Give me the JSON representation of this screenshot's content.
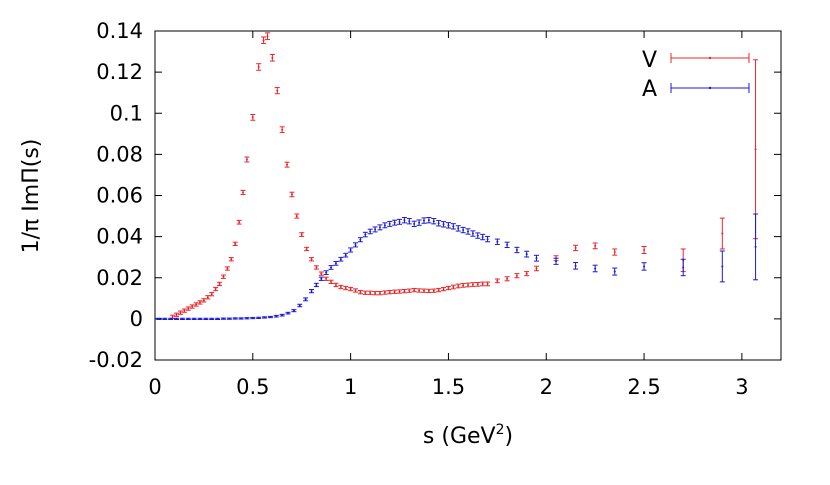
{
  "chart_data": {
    "type": "scatter",
    "title": "",
    "xlabel": "s (GeV",
    "xlabel_sup": "2",
    "xlabel_close": ")",
    "ylabel": "1/π  ImΠ(s)",
    "xlim": [
      0,
      3.2
    ],
    "ylim": [
      -0.02,
      0.14
    ],
    "xticks": [
      0,
      0.5,
      1,
      1.5,
      2,
      2.5,
      3
    ],
    "xtick_labels": [
      "0",
      "0.5",
      "1",
      "1.5",
      "2",
      "2.5",
      "3"
    ],
    "yticks": [
      -0.02,
      0,
      0.02,
      0.04,
      0.06,
      0.08,
      0.1,
      0.12,
      0.14
    ],
    "ytick_labels": [
      "-0.02",
      "0",
      "0.02",
      "0.04",
      "0.06",
      "0.08",
      "0.1",
      "0.12",
      "0.14"
    ],
    "grid": false,
    "legend_position": "top-right",
    "series": [
      {
        "name": "V",
        "color": "#e8262a",
        "points": [
          [
            0.09,
            0.001,
            0.0008
          ],
          [
            0.11,
            0.002,
            0.0008
          ],
          [
            0.13,
            0.003,
            0.0008
          ],
          [
            0.15,
            0.004,
            0.0008
          ],
          [
            0.17,
            0.005,
            0.0008
          ],
          [
            0.19,
            0.006,
            0.0008
          ],
          [
            0.21,
            0.007,
            0.0008
          ],
          [
            0.23,
            0.008,
            0.0008
          ],
          [
            0.25,
            0.009,
            0.0008
          ],
          [
            0.27,
            0.0105,
            0.0008
          ],
          [
            0.29,
            0.012,
            0.0008
          ],
          [
            0.31,
            0.0145,
            0.0008
          ],
          [
            0.33,
            0.017,
            0.0008
          ],
          [
            0.35,
            0.0205,
            0.0008
          ],
          [
            0.37,
            0.0245,
            0.0008
          ],
          [
            0.39,
            0.029,
            0.0008
          ],
          [
            0.41,
            0.0365,
            0.0008
          ],
          [
            0.43,
            0.047,
            0.0009
          ],
          [
            0.45,
            0.0615,
            0.001
          ],
          [
            0.47,
            0.0775,
            0.0012
          ],
          [
            0.5,
            0.098,
            0.0014
          ],
          [
            0.53,
            0.1225,
            0.0016
          ],
          [
            0.555,
            0.1355,
            0.0016
          ],
          [
            0.575,
            0.1375,
            0.0016
          ],
          [
            0.6,
            0.127,
            0.0016
          ],
          [
            0.625,
            0.111,
            0.0015
          ],
          [
            0.65,
            0.092,
            0.0014
          ],
          [
            0.675,
            0.075,
            0.0012
          ],
          [
            0.7,
            0.0605,
            0.0011
          ],
          [
            0.725,
            0.05,
            0.001
          ],
          [
            0.75,
            0.041,
            0.0009
          ],
          [
            0.775,
            0.034,
            0.0008
          ],
          [
            0.8,
            0.029,
            0.0008
          ],
          [
            0.825,
            0.025,
            0.0008
          ],
          [
            0.85,
            0.022,
            0.0008
          ],
          [
            0.875,
            0.0195,
            0.0008
          ],
          [
            0.9,
            0.018,
            0.0008
          ],
          [
            0.925,
            0.0165,
            0.0008
          ],
          [
            0.95,
            0.0155,
            0.0008
          ],
          [
            0.975,
            0.015,
            0.0008
          ],
          [
            1.0,
            0.0145,
            0.0008
          ],
          [
            1.025,
            0.0138,
            0.0008
          ],
          [
            1.05,
            0.013,
            0.0008
          ],
          [
            1.075,
            0.0127,
            0.0008
          ],
          [
            1.1,
            0.0127,
            0.0008
          ],
          [
            1.125,
            0.0125,
            0.0008
          ],
          [
            1.15,
            0.0125,
            0.0008
          ],
          [
            1.175,
            0.0128,
            0.0008
          ],
          [
            1.2,
            0.013,
            0.0008
          ],
          [
            1.225,
            0.0132,
            0.0008
          ],
          [
            1.25,
            0.0133,
            0.0008
          ],
          [
            1.275,
            0.0135,
            0.0008
          ],
          [
            1.3,
            0.0137,
            0.0008
          ],
          [
            1.325,
            0.014,
            0.0008
          ],
          [
            1.35,
            0.0138,
            0.0008
          ],
          [
            1.375,
            0.0137,
            0.0008
          ],
          [
            1.4,
            0.0136,
            0.0008
          ],
          [
            1.425,
            0.0137,
            0.0008
          ],
          [
            1.45,
            0.014,
            0.0008
          ],
          [
            1.475,
            0.0145,
            0.0008
          ],
          [
            1.5,
            0.015,
            0.0008
          ],
          [
            1.525,
            0.0155,
            0.0009
          ],
          [
            1.55,
            0.016,
            0.0009
          ],
          [
            1.575,
            0.0163,
            0.0009
          ],
          [
            1.6,
            0.0165,
            0.0009
          ],
          [
            1.625,
            0.0167,
            0.0009
          ],
          [
            1.65,
            0.0168,
            0.0009
          ],
          [
            1.675,
            0.017,
            0.0009
          ],
          [
            1.7,
            0.017,
            0.0009
          ],
          [
            1.75,
            0.0185,
            0.0009
          ],
          [
            1.8,
            0.0195,
            0.001
          ],
          [
            1.85,
            0.021,
            0.001
          ],
          [
            1.9,
            0.022,
            0.001
          ],
          [
            1.95,
            0.0245,
            0.0011
          ],
          [
            2.05,
            0.0295,
            0.0012
          ],
          [
            2.15,
            0.0345,
            0.0013
          ],
          [
            2.25,
            0.0355,
            0.0014
          ],
          [
            2.35,
            0.0325,
            0.0015
          ],
          [
            2.5,
            0.0335,
            0.0017
          ],
          [
            2.7,
            0.0285,
            0.0055
          ],
          [
            2.9,
            0.0415,
            0.0075
          ],
          [
            3.07,
            0.0825,
            0.0435
          ]
        ]
      },
      {
        "name": "A",
        "color": "#1a1ad4",
        "points": [
          [
            0.02,
            0.0,
            0.0003
          ],
          [
            0.05,
            0.0,
            0.0003
          ],
          [
            0.08,
            0.0,
            0.0003
          ],
          [
            0.11,
            0.0,
            0.0003
          ],
          [
            0.14,
            0.0,
            0.0003
          ],
          [
            0.17,
            0.0,
            0.0003
          ],
          [
            0.2,
            0.0,
            0.0003
          ],
          [
            0.23,
            0.0,
            0.0003
          ],
          [
            0.26,
            0.0,
            0.0003
          ],
          [
            0.29,
            0.0,
            0.0003
          ],
          [
            0.32,
            0.0,
            0.0003
          ],
          [
            0.35,
            0.0001,
            0.0003
          ],
          [
            0.38,
            0.0001,
            0.0003
          ],
          [
            0.41,
            0.0002,
            0.0003
          ],
          [
            0.44,
            0.0002,
            0.0003
          ],
          [
            0.47,
            0.0003,
            0.0003
          ],
          [
            0.5,
            0.0004,
            0.0003
          ],
          [
            0.53,
            0.0005,
            0.0003
          ],
          [
            0.56,
            0.0007,
            0.0003
          ],
          [
            0.59,
            0.0009,
            0.0003
          ],
          [
            0.62,
            0.0013,
            0.0004
          ],
          [
            0.65,
            0.0018,
            0.0004
          ],
          [
            0.68,
            0.0028,
            0.0004
          ],
          [
            0.71,
            0.004,
            0.0005
          ],
          [
            0.74,
            0.0065,
            0.0006
          ],
          [
            0.77,
            0.0095,
            0.0007
          ],
          [
            0.8,
            0.0135,
            0.0008
          ],
          [
            0.825,
            0.0165,
            0.0008
          ],
          [
            0.85,
            0.0195,
            0.0008
          ],
          [
            0.875,
            0.0225,
            0.0009
          ],
          [
            0.9,
            0.025,
            0.0009
          ],
          [
            0.925,
            0.027,
            0.0009
          ],
          [
            0.95,
            0.029,
            0.0009
          ],
          [
            0.975,
            0.031,
            0.0009
          ],
          [
            1.0,
            0.0335,
            0.001
          ],
          [
            1.025,
            0.036,
            0.001
          ],
          [
            1.05,
            0.0385,
            0.001
          ],
          [
            1.075,
            0.041,
            0.0011
          ],
          [
            1.1,
            0.0425,
            0.0011
          ],
          [
            1.125,
            0.0435,
            0.0012
          ],
          [
            1.15,
            0.0445,
            0.0012
          ],
          [
            1.175,
            0.0455,
            0.0012
          ],
          [
            1.2,
            0.0462,
            0.0012
          ],
          [
            1.225,
            0.0468,
            0.0012
          ],
          [
            1.25,
            0.0472,
            0.0012
          ],
          [
            1.275,
            0.048,
            0.0013
          ],
          [
            1.3,
            0.0475,
            0.0013
          ],
          [
            1.325,
            0.0462,
            0.0013
          ],
          [
            1.35,
            0.0468,
            0.0013
          ],
          [
            1.375,
            0.0478,
            0.0013
          ],
          [
            1.4,
            0.048,
            0.0013
          ],
          [
            1.425,
            0.0475,
            0.0013
          ],
          [
            1.45,
            0.0465,
            0.0013
          ],
          [
            1.475,
            0.046,
            0.0013
          ],
          [
            1.5,
            0.0455,
            0.0013
          ],
          [
            1.525,
            0.045,
            0.0013
          ],
          [
            1.55,
            0.044,
            0.0013
          ],
          [
            1.575,
            0.0432,
            0.0013
          ],
          [
            1.6,
            0.0425,
            0.0013
          ],
          [
            1.625,
            0.0415,
            0.0013
          ],
          [
            1.65,
            0.0405,
            0.0013
          ],
          [
            1.675,
            0.0398,
            0.0013
          ],
          [
            1.7,
            0.0388,
            0.0013
          ],
          [
            1.75,
            0.0375,
            0.0013
          ],
          [
            1.8,
            0.036,
            0.0013
          ],
          [
            1.85,
            0.0335,
            0.0013
          ],
          [
            1.9,
            0.0315,
            0.0014
          ],
          [
            1.95,
            0.0295,
            0.0014
          ],
          [
            2.05,
            0.028,
            0.0015
          ],
          [
            2.15,
            0.0258,
            0.0016
          ],
          [
            2.25,
            0.0245,
            0.0016
          ],
          [
            2.35,
            0.023,
            0.0017
          ],
          [
            2.5,
            0.0255,
            0.0018
          ],
          [
            2.7,
            0.025,
            0.004
          ],
          [
            2.9,
            0.0255,
            0.0075
          ],
          [
            3.07,
            0.035,
            0.016
          ]
        ]
      }
    ]
  }
}
